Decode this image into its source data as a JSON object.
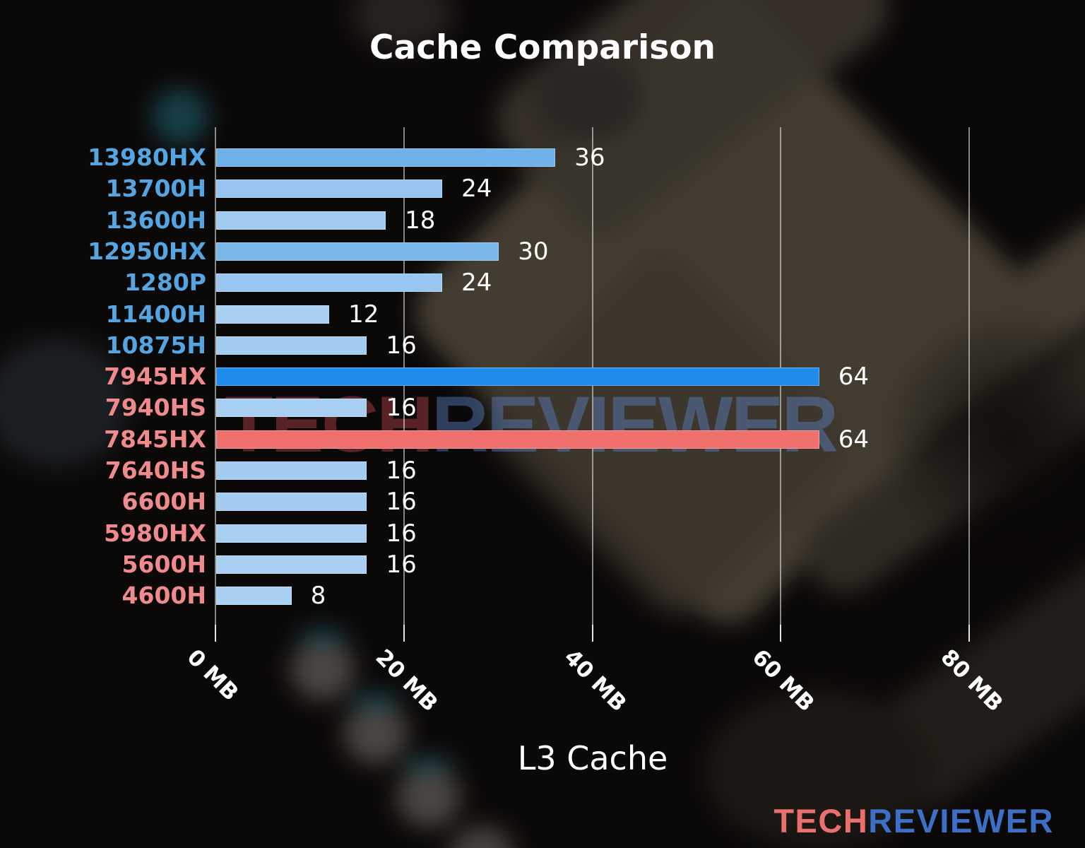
{
  "chart_data": {
    "type": "bar",
    "orientation": "horizontal",
    "title": "Cache Comparison",
    "xlabel": "L3 Cache",
    "xticks": [
      "0 MB",
      "20 MB",
      "40 MB",
      "60 MB",
      "80 MB"
    ],
    "xtick_values": [
      0,
      20,
      40,
      60,
      80
    ],
    "xlim": [
      0,
      86
    ],
    "grid": "vertical-gridlines-on",
    "legend": "none",
    "categories": [
      "13980HX",
      "13700H",
      "13600H",
      "12950HX",
      "1280P",
      "11400H",
      "10875H",
      "7945HX",
      "7940HS",
      "7845HX",
      "7640HS",
      "6600H",
      "5980HX",
      "5600H",
      "4600H"
    ],
    "values": [
      36,
      24,
      18,
      30,
      24,
      12,
      16,
      64,
      16,
      64,
      16,
      16,
      16,
      16,
      8
    ],
    "rows": [
      {
        "label": "13980HX",
        "value": 36,
        "group": "intel",
        "bar_color": "#70b1e9"
      },
      {
        "label": "13700H",
        "value": 24,
        "group": "intel",
        "bar_color": "#96c4ef"
      },
      {
        "label": "13600H",
        "value": 18,
        "group": "intel",
        "bar_color": "#a2cbf1"
      },
      {
        "label": "12950HX",
        "value": 30,
        "group": "intel",
        "bar_color": "#79b6ea"
      },
      {
        "label": "1280P",
        "value": 24,
        "group": "intel",
        "bar_color": "#98c6f0"
      },
      {
        "label": "11400H",
        "value": 12,
        "group": "intel",
        "bar_color": "#a9cff3"
      },
      {
        "label": "10875H",
        "value": 16,
        "group": "intel",
        "bar_color": "#a3ccf1"
      },
      {
        "label": "7945HX",
        "value": 64,
        "group": "amd",
        "bar_color": "#1f8ceb"
      },
      {
        "label": "7940HS",
        "value": 16,
        "group": "amd",
        "bar_color": "#a8cef2"
      },
      {
        "label": "7845HX",
        "value": 64,
        "group": "amd",
        "bar_color": "#ef6f6d"
      },
      {
        "label": "7640HS",
        "value": 16,
        "group": "amd",
        "bar_color": "#a4ccf1"
      },
      {
        "label": "6600H",
        "value": 16,
        "group": "amd",
        "bar_color": "#a4ccf1"
      },
      {
        "label": "5980HX",
        "value": 16,
        "group": "amd",
        "bar_color": "#a8cff2"
      },
      {
        "label": "5600H",
        "value": 16,
        "group": "amd",
        "bar_color": "#a9cff2"
      },
      {
        "label": "4600H",
        "value": 8,
        "group": "amd",
        "bar_color": "#a9cff2"
      }
    ],
    "label_colors": {
      "intel": "#54a5e2",
      "amd": "#f08b8d"
    },
    "highlight_colors": {
      "intel_highlight": "#1f8ceb",
      "amd_highlight": "#ef6f6d"
    }
  },
  "watermark": {
    "tech": "TECH",
    "reviewer": "REVIEWER"
  },
  "logo": {
    "tech": "TECH",
    "reviewer": "REVIEWER"
  },
  "colors": {
    "background": "#0b0908",
    "text": "#ffffff",
    "gridline": "#eeeeee",
    "logo_tech": "#e8716f",
    "logo_reviewer": "#3d6fc6"
  }
}
